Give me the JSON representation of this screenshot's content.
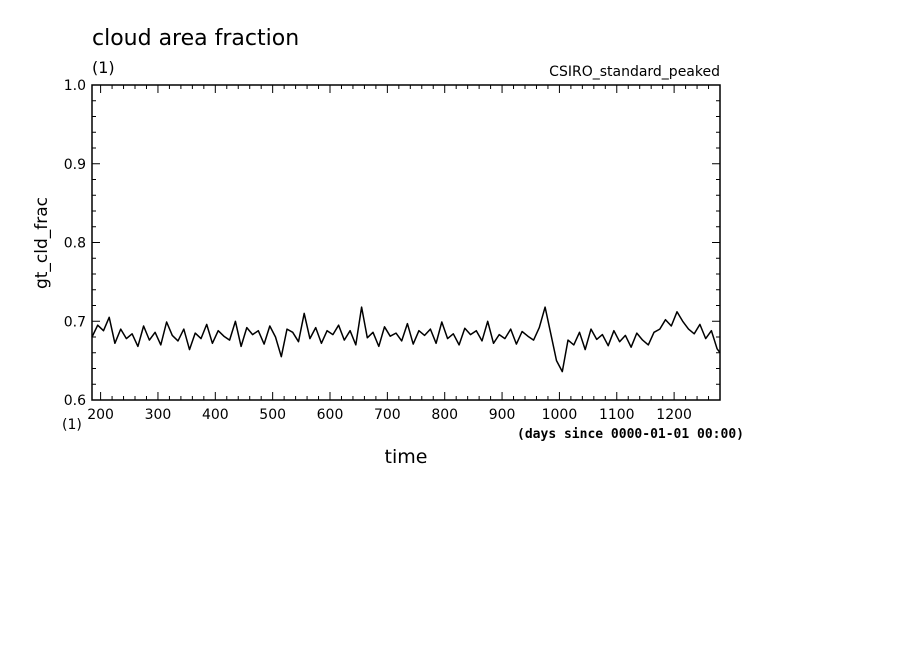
{
  "chart_data": {
    "type": "line",
    "title": "cloud area fraction",
    "title_unit": "(1)",
    "model_label": "CSIRO_standard_peaked",
    "xlabel": "time",
    "x_unit": "(days since 0000-01-01 00:00)",
    "ylabel": "gt_cld_frac",
    "y_unit": "(1)",
    "xlim": [
      185,
      1280
    ],
    "ylim": [
      0.6,
      1.0
    ],
    "x_ticks": [
      200,
      300,
      400,
      500,
      600,
      700,
      800,
      900,
      1000,
      1100,
      1200
    ],
    "x_tick_labels": [
      "200",
      "300",
      "400",
      "500",
      "600",
      "700",
      "800",
      "900",
      "1000",
      "1100",
      "1200"
    ],
    "y_ticks": [
      0.6,
      0.7,
      0.8,
      0.9,
      1.0
    ],
    "y_tick_labels": [
      "0.6",
      "0.7",
      "0.8",
      "0.9",
      "1.0"
    ],
    "grid": false,
    "line_color": "#000000",
    "series": [
      {
        "x": [
          185,
          195,
          205,
          215,
          225,
          235,
          245,
          255,
          265,
          275,
          285,
          295,
          305,
          315,
          325,
          335,
          345,
          355,
          365,
          375,
          385,
          395,
          405,
          415,
          425,
          435,
          445,
          455,
          465,
          475,
          485,
          495,
          505,
          515,
          525,
          535,
          545,
          555,
          565,
          575,
          585,
          595,
          605,
          615,
          625,
          635,
          645,
          655,
          665,
          675,
          685,
          695,
          705,
          715,
          725,
          735,
          745,
          755,
          765,
          775,
          785,
          795,
          805,
          815,
          825,
          835,
          845,
          855,
          865,
          875,
          885,
          895,
          905,
          915,
          925,
          935,
          945,
          955,
          965,
          975,
          985,
          995,
          1005,
          1015,
          1025,
          1035,
          1045,
          1055,
          1065,
          1075,
          1085,
          1095,
          1105,
          1115,
          1125,
          1135,
          1145,
          1155,
          1165,
          1175,
          1185,
          1195,
          1205,
          1215,
          1225,
          1235,
          1245,
          1255,
          1265,
          1275,
          1280
        ],
        "y": [
          0.68,
          0.695,
          0.688,
          0.705,
          0.672,
          0.69,
          0.678,
          0.684,
          0.668,
          0.694,
          0.676,
          0.686,
          0.67,
          0.699,
          0.682,
          0.675,
          0.69,
          0.664,
          0.685,
          0.678,
          0.696,
          0.672,
          0.688,
          0.681,
          0.676,
          0.7,
          0.668,
          0.692,
          0.683,
          0.688,
          0.671,
          0.694,
          0.68,
          0.655,
          0.69,
          0.686,
          0.674,
          0.71,
          0.678,
          0.692,
          0.672,
          0.688,
          0.683,
          0.695,
          0.676,
          0.688,
          0.67,
          0.718,
          0.679,
          0.686,
          0.668,
          0.693,
          0.681,
          0.685,
          0.675,
          0.697,
          0.671,
          0.688,
          0.682,
          0.69,
          0.672,
          0.699,
          0.678,
          0.684,
          0.67,
          0.691,
          0.683,
          0.688,
          0.675,
          0.7,
          0.672,
          0.683,
          0.678,
          0.69,
          0.671,
          0.687,
          0.681,
          0.676,
          0.692,
          0.718,
          0.684,
          0.65,
          0.636,
          0.676,
          0.67,
          0.686,
          0.664,
          0.69,
          0.677,
          0.683,
          0.669,
          0.688,
          0.674,
          0.682,
          0.667,
          0.685,
          0.676,
          0.67,
          0.686,
          0.69,
          0.702,
          0.694,
          0.712,
          0.7,
          0.69,
          0.684,
          0.696,
          0.678,
          0.688,
          0.665,
          0.66
        ]
      }
    ]
  }
}
